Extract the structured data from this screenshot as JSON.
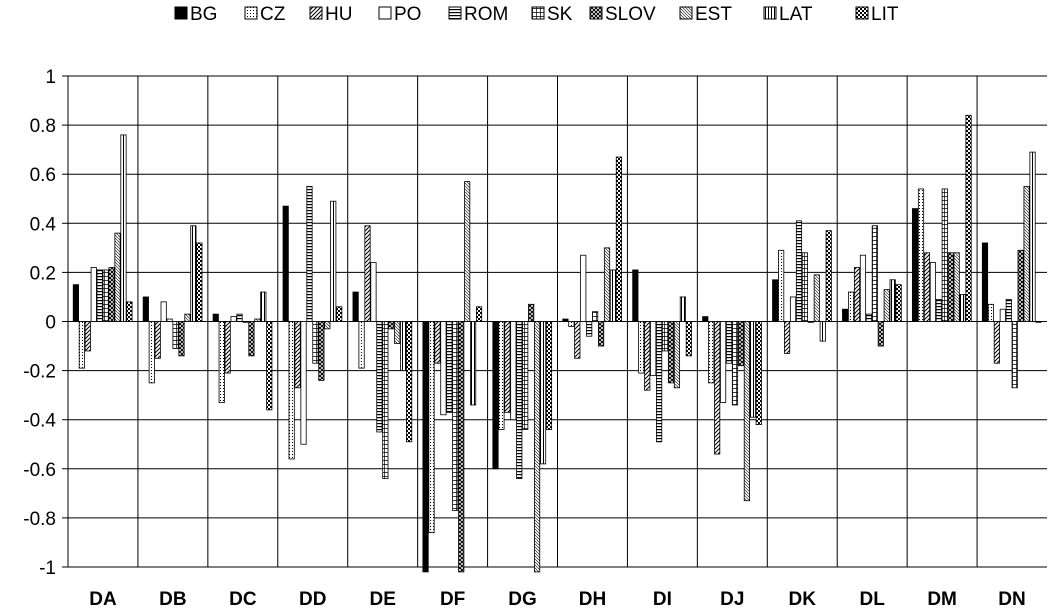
{
  "chart_data": {
    "type": "bar",
    "categories": [
      "DA",
      "DB",
      "DC",
      "DD",
      "DE",
      "DF",
      "DG",
      "DH",
      "DI",
      "DJ",
      "DK",
      "DL",
      "DM",
      "DN"
    ],
    "ylim": [
      -1,
      1
    ],
    "yticks": [
      1,
      0.8,
      0.6,
      0.4,
      0.2,
      0,
      -0.2,
      -0.4,
      -0.6,
      -0.8,
      -1
    ],
    "grid": true,
    "legend_position": "top",
    "series": [
      {
        "name": "BG",
        "pattern": "solid",
        "values": [
          0.15,
          0.1,
          0.03,
          0.47,
          0.12,
          -1.02,
          -0.6,
          0.01,
          0.21,
          0.02,
          0.17,
          0.05,
          0.46,
          0.32
        ]
      },
      {
        "name": "CZ",
        "pattern": "dots",
        "values": [
          -0.19,
          -0.25,
          -0.33,
          -0.56,
          -0.19,
          -0.86,
          -0.44,
          -0.02,
          -0.21,
          -0.25,
          0.29,
          0.12,
          0.54,
          0.07
        ]
      },
      {
        "name": "HU",
        "pattern": "diag",
        "values": [
          -0.12,
          -0.15,
          -0.21,
          -0.27,
          0.39,
          -0.17,
          -0.37,
          -0.15,
          -0.28,
          -0.54,
          -0.13,
          0.22,
          0.28,
          -0.17
        ]
      },
      {
        "name": "PO",
        "pattern": "empty",
        "values": [
          0.22,
          0.08,
          0.02,
          -0.5,
          0.24,
          -0.38,
          -0.4,
          0.27,
          -0.22,
          -0.33,
          0.1,
          0.27,
          0.24,
          0.05
        ]
      },
      {
        "name": "ROM",
        "pattern": "hlines",
        "values": [
          0.21,
          0.01,
          0.03,
          0.55,
          -0.45,
          -0.37,
          -0.64,
          -0.06,
          -0.49,
          -0.17,
          0.41,
          0.03,
          0.09,
          0.09
        ]
      },
      {
        "name": "SK",
        "pattern": "grid",
        "values": [
          0.21,
          -0.11,
          0.0,
          -0.17,
          -0.64,
          -0.77,
          -0.44,
          0.04,
          -0.12,
          -0.34,
          0.28,
          0.39,
          0.54,
          -0.27
        ]
      },
      {
        "name": "SLOV",
        "pattern": "checker",
        "values": [
          0.22,
          -0.14,
          -0.14,
          -0.24,
          -0.03,
          -1.02,
          0.07,
          -0.1,
          -0.25,
          -0.18,
          0.0,
          -0.1,
          0.28,
          0.29
        ]
      },
      {
        "name": "EST",
        "pattern": "finediag",
        "values": [
          0.36,
          0.03,
          0.01,
          -0.03,
          -0.09,
          0.57,
          -1.02,
          0.3,
          -0.27,
          -0.73,
          0.19,
          0.13,
          0.28,
          0.55
        ]
      },
      {
        "name": "LAT",
        "pattern": "vlines",
        "values": [
          0.76,
          0.39,
          0.12,
          0.49,
          -0.2,
          -0.34,
          -0.58,
          0.21,
          0.1,
          -0.39,
          -0.08,
          0.17,
          0.11,
          0.69
        ]
      },
      {
        "name": "LIT",
        "pattern": "bigcheck",
        "values": [
          0.08,
          0.32,
          -0.36,
          0.06,
          -0.49,
          0.06,
          -0.44,
          0.67,
          -0.14,
          -0.42,
          0.37,
          0.15,
          0.84,
          0.0
        ]
      }
    ]
  }
}
